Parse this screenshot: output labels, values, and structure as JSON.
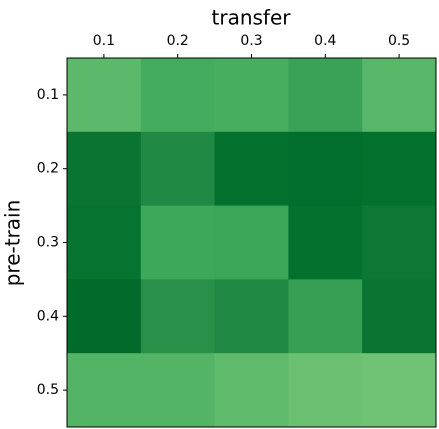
{
  "chart_data": {
    "type": "heatmap",
    "x_label": "transfer",
    "y_label": "pre-train",
    "x_categories": [
      "0.1",
      "0.2",
      "0.3",
      "0.4",
      "0.5"
    ],
    "y_categories": [
      "0.1",
      "0.2",
      "0.3",
      "0.4",
      "0.5"
    ],
    "colormap": "Greens",
    "values": [
      [
        0.56,
        0.62,
        0.61,
        0.66,
        0.57
      ],
      [
        0.84,
        0.76,
        0.86,
        0.87,
        0.86
      ],
      [
        0.85,
        0.64,
        0.65,
        0.86,
        0.83
      ],
      [
        0.88,
        0.73,
        0.76,
        0.67,
        0.84
      ],
      [
        0.58,
        0.58,
        0.55,
        0.52,
        0.51
      ]
    ]
  }
}
